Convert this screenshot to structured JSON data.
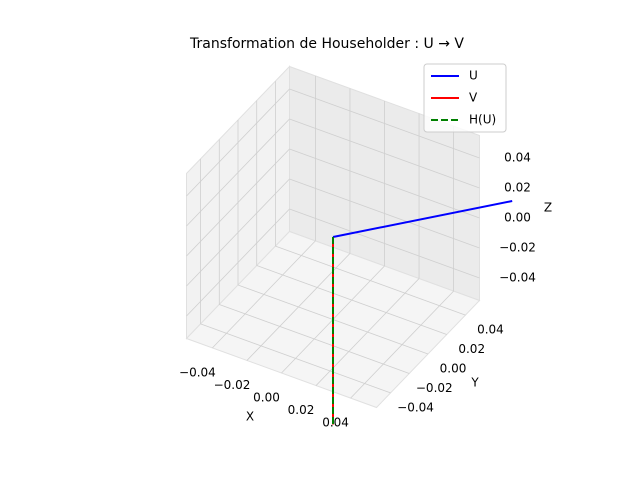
{
  "chart_data": {
    "type": "line3d",
    "title": "Transformation de Householder : U → V",
    "xlabel": "X",
    "ylabel": "Y",
    "zlabel": "Z",
    "xlim": [
      -0.055,
      0.055
    ],
    "ylim": [
      -0.055,
      0.055
    ],
    "zlim": [
      -0.055,
      0.055
    ],
    "xticks": [
      {
        "value": -0.04,
        "label": "−0.04"
      },
      {
        "value": -0.02,
        "label": "−0.02"
      },
      {
        "value": 0,
        "label": "0.00"
      },
      {
        "value": 0.02,
        "label": "0.02"
      },
      {
        "value": 0.04,
        "label": "0.04"
      }
    ],
    "yticks": [
      {
        "value": -0.04,
        "label": "−0.04"
      },
      {
        "value": -0.02,
        "label": "−0.02"
      },
      {
        "value": 0,
        "label": "0.00"
      },
      {
        "value": 0.02,
        "label": "0.02"
      },
      {
        "value": 0.04,
        "label": "0.04"
      }
    ],
    "zticks": [
      {
        "value": -0.04,
        "label": "−0.04"
      },
      {
        "value": -0.02,
        "label": "−0.02"
      },
      {
        "value": 0,
        "label": "0.00"
      },
      {
        "value": 0.02,
        "label": "0.02"
      },
      {
        "value": 0.04,
        "label": "0.04"
      }
    ],
    "grid": true,
    "legend": "upper right",
    "series": [
      {
        "name": "U",
        "color": "#0000ff",
        "dashed": false,
        "x": [
          0,
          0.062
        ],
        "y": [
          0,
          0.077
        ],
        "z": [
          0,
          0
        ]
      },
      {
        "name": "V",
        "color": "#ff0000",
        "dashed": false,
        "x": [
          0,
          0
        ],
        "y": [
          0,
          0
        ],
        "z": [
          0,
          -0.125
        ]
      },
      {
        "name": "H(U)",
        "color": "#008000",
        "dashed": true,
        "x": [
          0,
          0
        ],
        "y": [
          0,
          0
        ],
        "z": [
          0,
          -0.125
        ]
      }
    ]
  }
}
